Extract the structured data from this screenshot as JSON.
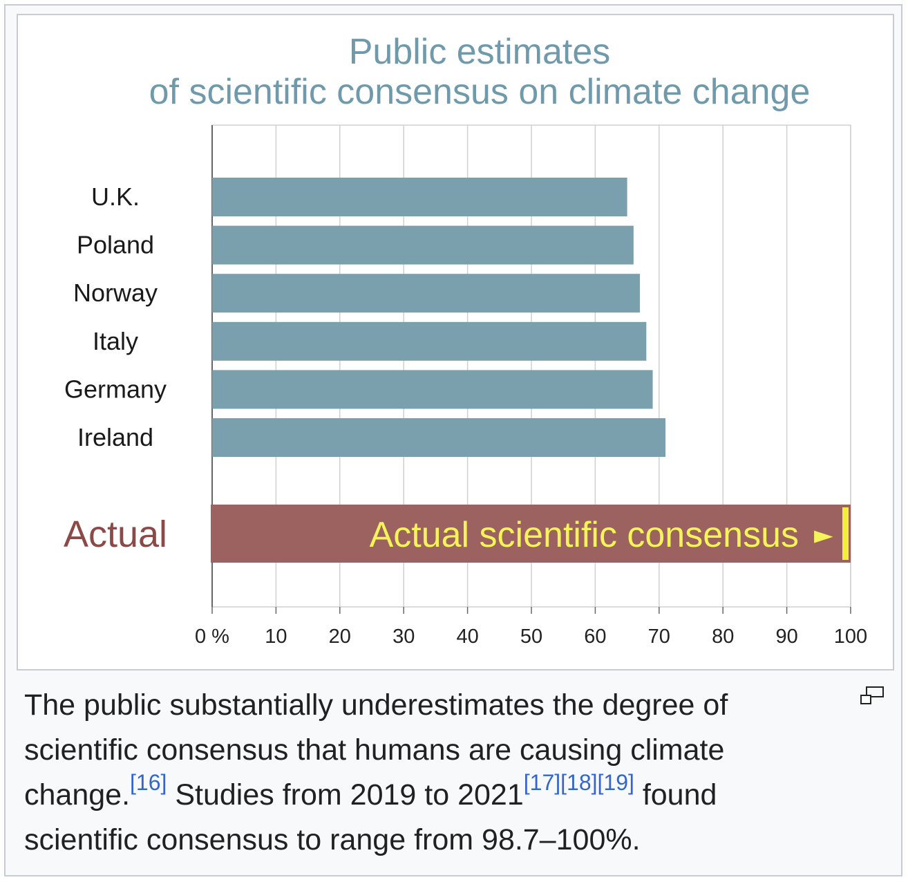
{
  "chart_data": {
    "type": "bar",
    "orientation": "horizontal",
    "title_line1": "Public estimates",
    "title_line2": "of scientific consensus on climate change",
    "categories": [
      "U.K.",
      "Poland",
      "Norway",
      "Italy",
      "Germany",
      "Ireland"
    ],
    "values": [
      65,
      66,
      67,
      68,
      69,
      71
    ],
    "xlim": [
      0,
      100
    ],
    "x_ticks": [
      "0 %",
      "10",
      "20",
      "30",
      "40",
      "50",
      "60",
      "70",
      "80",
      "90",
      "100"
    ],
    "grid": true,
    "actual": {
      "label": "Actual",
      "bar_text": "Actual scientific consensus",
      "arrow": "►",
      "value": 100
    },
    "colors": {
      "bar": "#7a9fad",
      "actual_bar": "#9b625f",
      "actual_label": "#8b4a46",
      "actual_text": "#f5f35a",
      "marker": "#f2ef3c",
      "title": "#6f9aab",
      "grid": "#d0d0d0"
    }
  },
  "caption": {
    "part1": "The public substantially underestimates the degree of scientific consensus that humans are causing climate change.",
    "ref1": "[16]",
    "part2": " Studies from 2019 to 2021",
    "ref2": "[17]",
    "ref3": "[18]",
    "ref4": "[19]",
    "part3": " found scientific consensus to range from 98.7–100%."
  },
  "icons": {
    "magnify": "enlarge-icon"
  }
}
